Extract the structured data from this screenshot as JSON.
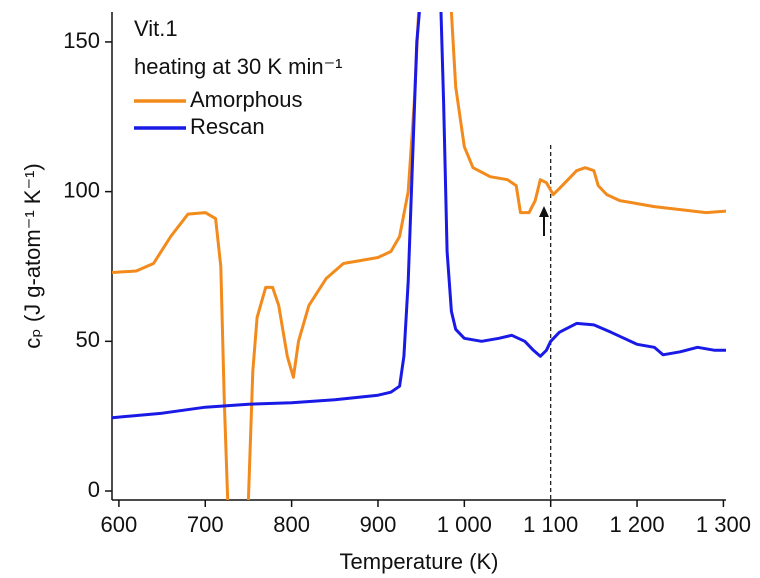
{
  "chart_data": {
    "type": "line",
    "annotations": [
      "Vit.1",
      "heating at 30 K min⁻¹"
    ],
    "x_label": "Temperature (K)",
    "y_label": "cₚ (J g-atom⁻¹ K⁻¹)",
    "xlim": [
      592,
      1303
    ],
    "ylim": [
      -3,
      160
    ],
    "xticks": [
      600,
      700,
      800,
      900,
      {
        "value": 1000,
        "label": "1 000"
      },
      {
        "value": 1100,
        "label": "1 100"
      },
      {
        "value": 1200,
        "label": "1 200"
      },
      {
        "value": 1300,
        "label": "1 300"
      }
    ],
    "yticks": [
      0,
      50,
      100,
      150
    ],
    "vline_x": 1100,
    "series": [
      {
        "name": "Amorphous",
        "color": "#f28a1c",
        "x": [
          592,
          620,
          640,
          660,
          680,
          700,
          712,
          718,
          722,
          726,
          null,
          750,
          755,
          760,
          770,
          778,
          785,
          795,
          802,
          808,
          820,
          840,
          860,
          880,
          900,
          915,
          925,
          935,
          942,
          947,
          null,
          985,
          990,
          1000,
          1010,
          1030,
          1050,
          1060,
          1065,
          1075,
          1082,
          1088,
          1095,
          1103,
          1110,
          1120,
          1130,
          1140,
          1150,
          1155,
          1165,
          1180,
          1200,
          1220,
          1250,
          1280,
          1303
        ],
        "values": [
          73,
          73.5,
          76,
          85,
          92.5,
          93,
          91,
          75,
          30,
          -3,
          null,
          -3,
          40,
          58,
          68,
          68,
          62,
          45,
          38,
          50,
          62,
          71,
          76,
          77,
          78,
          80,
          85,
          100,
          130,
          160,
          null,
          160,
          135,
          115,
          108,
          105,
          104,
          102,
          93,
          93,
          97,
          104,
          103,
          99,
          101,
          104,
          107,
          108,
          107,
          102,
          99,
          97,
          96,
          95,
          94,
          93,
          93.5
        ]
      },
      {
        "name": "Rescan",
        "color": "#1a1ae6",
        "x": [
          592,
          650,
          700,
          750,
          800,
          850,
          900,
          915,
          925,
          930,
          935,
          940,
          945,
          948,
          null,
          973,
          976,
          980,
          985,
          990,
          1000,
          1020,
          1040,
          1055,
          1070,
          1080,
          1088,
          1095,
          1100,
          1110,
          1130,
          1150,
          1170,
          1185,
          1200,
          1220,
          1230,
          1250,
          1270,
          1290,
          1303
        ],
        "values": [
          24.5,
          26,
          28,
          29,
          29.5,
          30.5,
          32,
          33,
          35,
          45,
          70,
          110,
          150,
          160,
          null,
          160,
          130,
          80,
          60,
          54,
          51,
          50,
          51,
          52,
          50,
          47,
          45,
          47,
          50,
          53,
          56,
          55.5,
          53,
          51,
          49,
          48,
          45.5,
          46.5,
          48,
          47,
          47
        ]
      }
    ]
  }
}
